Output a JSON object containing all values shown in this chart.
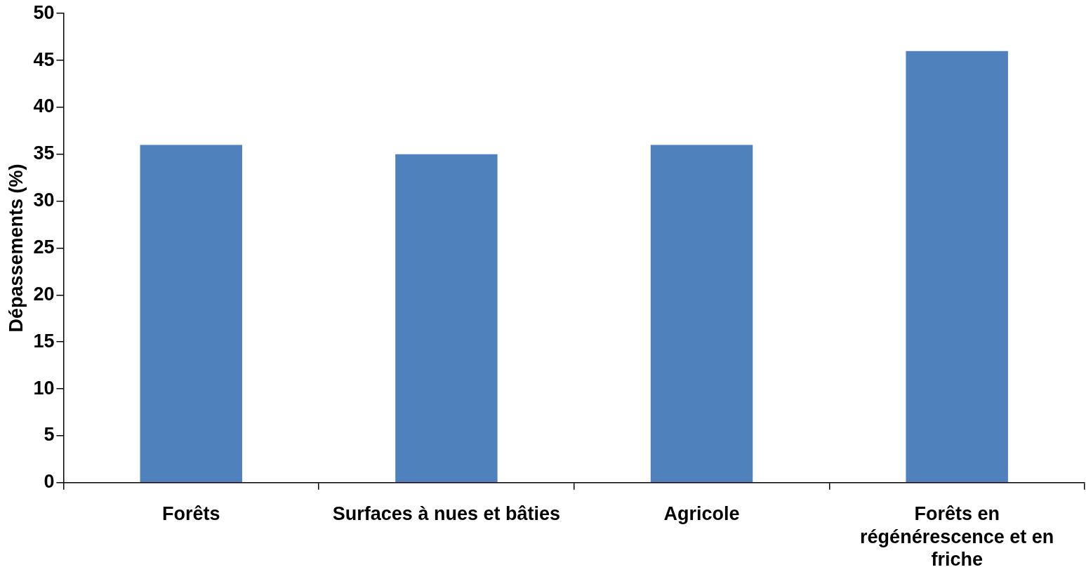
{
  "chart_data": {
    "type": "bar",
    "ylabel": "Dépassements (%)",
    "categories": [
      "Forêts",
      "Surfaces à nues et bâties",
      "Agricole",
      "Forêts en régénérescence et en friche"
    ],
    "values": [
      36,
      35,
      36,
      46
    ],
    "color": "#4f81bd",
    "ylim": [
      0,
      50
    ],
    "yticks": [
      0,
      5,
      10,
      15,
      20,
      25,
      30,
      35,
      40,
      45,
      50
    ],
    "grid": false,
    "legend": false
  }
}
